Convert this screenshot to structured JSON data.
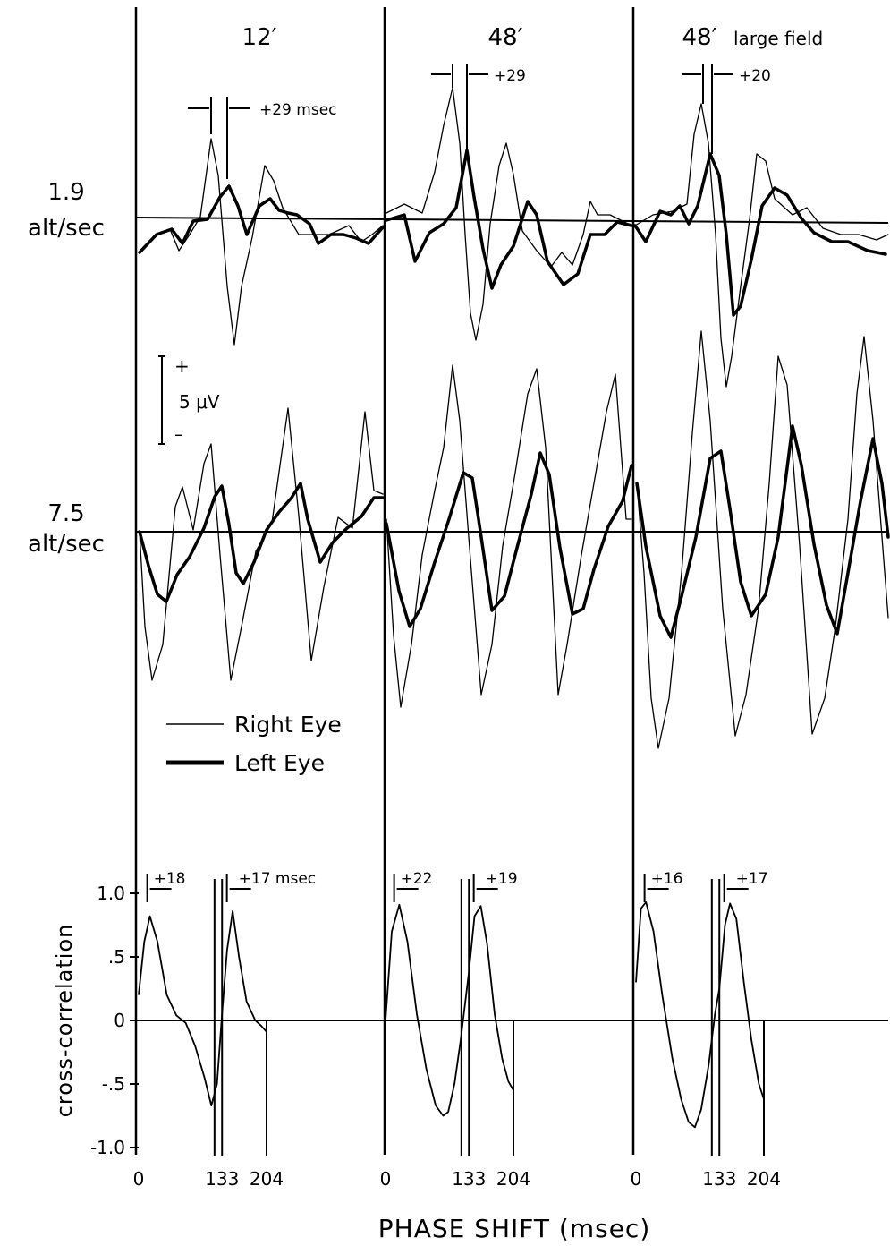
{
  "chart_data": {
    "type": "line",
    "panel_titles": [
      {
        "main": "12′",
        "extra": ""
      },
      {
        "main": "48′",
        "extra": ""
      },
      {
        "main": "48′",
        "extra": "large field"
      }
    ],
    "rows": [
      {
        "rate": "1.9",
        "unit": "alt/sec"
      },
      {
        "rate": "7.5",
        "unit": "alt/sec"
      }
    ],
    "delay_annotations_1_9": [
      "+29 msec",
      "+29",
      "+20"
    ],
    "legend": {
      "right": "Right Eye",
      "left": "Left Eye"
    },
    "scale_bar": {
      "plus": "+",
      "minus": "–",
      "label": "5 μV"
    },
    "cross_correlation": {
      "ylabel": "cross-correlation",
      "xlabel": "PHASE SHIFT (msec)",
      "yticks": [
        "1.0",
        ".5",
        "0",
        "-.5",
        "-1.0"
      ],
      "xticks": [
        "0",
        "133",
        "204"
      ],
      "ylim": [
        -1.0,
        1.0
      ],
      "panels": [
        {
          "delays": [
            "+18",
            "+17 msec"
          ],
          "x": [
            0,
            9,
            18,
            30,
            45,
            60,
            75,
            90,
            105,
            116,
            125,
            133,
            141,
            150,
            160,
            172,
            186,
            195,
            204
          ],
          "y": [
            0.2,
            0.62,
            0.82,
            0.62,
            0.2,
            0.04,
            -0.02,
            -0.2,
            -0.45,
            -0.67,
            -0.5,
            0.05,
            0.55,
            0.86,
            0.5,
            0.15,
            0.0,
            -0.04,
            -0.09
          ]
        },
        {
          "delays": [
            "+22",
            "+19"
          ],
          "x": [
            0,
            10,
            22,
            35,
            50,
            65,
            80,
            92,
            100,
            110,
            120,
            133,
            142,
            152,
            162,
            174,
            186,
            196,
            204
          ],
          "y": [
            0.0,
            0.7,
            0.91,
            0.62,
            0.05,
            -0.38,
            -0.67,
            -0.75,
            -0.72,
            -0.5,
            -0.15,
            0.38,
            0.82,
            0.9,
            0.6,
            0.05,
            -0.3,
            -0.48,
            -0.55
          ]
        },
        {
          "delays": [
            "+16",
            "+17"
          ],
          "x": [
            0,
            8,
            16,
            28,
            42,
            58,
            72,
            84,
            94,
            104,
            116,
            126,
            133,
            142,
            150,
            160,
            172,
            184,
            196,
            204
          ],
          "y": [
            0.3,
            0.88,
            0.93,
            0.7,
            0.2,
            -0.3,
            -0.62,
            -0.8,
            -0.84,
            -0.7,
            -0.35,
            0.05,
            0.25,
            0.75,
            0.92,
            0.8,
            0.3,
            -0.15,
            -0.5,
            -0.62
          ]
        }
      ]
    }
  }
}
